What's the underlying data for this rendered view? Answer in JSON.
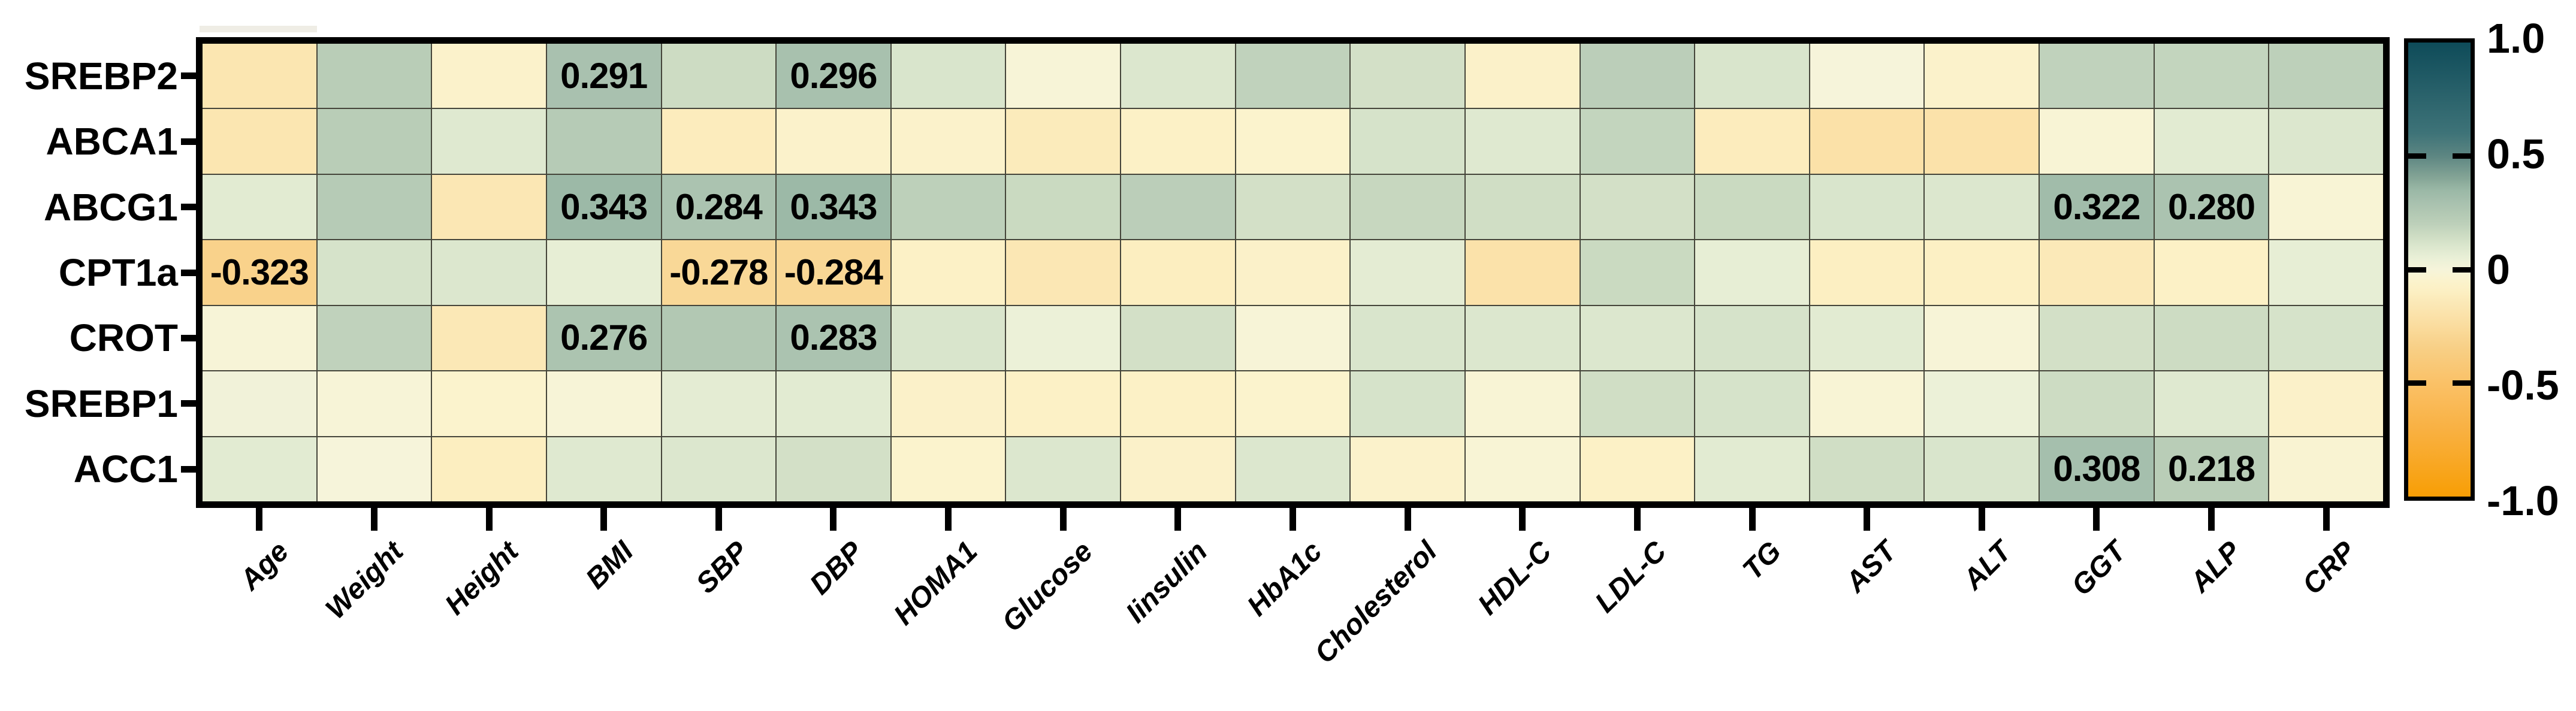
{
  "figure": {
    "description": "Correlation heatmap between gene expression and clinical parameters"
  },
  "chart_data": {
    "type": "heatmap",
    "rows": [
      "SREBP2",
      "ABCA1",
      "ABCG1",
      "CPT1a",
      "CROT",
      "SREBP1",
      "ACC1"
    ],
    "columns": [
      "Age",
      "Weight",
      "Height",
      "BMI",
      "SBP",
      "DBP",
      "HOMA1",
      "Glucose",
      "Iinsulin",
      "HbA1c",
      "Cholesterol",
      "HDL-C",
      "LDL-C",
      "TG",
      "AST",
      "ALT",
      "GGT",
      "ALP",
      "CRP"
    ],
    "values": [
      [
        -0.17,
        0.22,
        -0.06,
        0.291,
        0.15,
        0.296,
        0.11,
        -0.01,
        0.1,
        0.19,
        0.13,
        -0.07,
        0.21,
        0.11,
        0.0,
        -0.06,
        0.19,
        0.18,
        0.2
      ],
      [
        -0.17,
        0.22,
        0.09,
        0.23,
        -0.12,
        -0.06,
        -0.06,
        -0.13,
        -0.08,
        -0.05,
        0.12,
        0.09,
        0.18,
        -0.12,
        -0.21,
        -0.2,
        -0.02,
        0.08,
        0.1
      ],
      [
        0.08,
        0.23,
        -0.16,
        0.343,
        0.284,
        0.343,
        0.2,
        0.16,
        0.21,
        0.13,
        0.17,
        0.14,
        0.13,
        0.16,
        0.11,
        0.1,
        0.322,
        0.28,
        -0.02
      ],
      [
        -0.323,
        0.12,
        0.1,
        0.06,
        -0.278,
        -0.284,
        -0.08,
        -0.16,
        -0.11,
        -0.07,
        0.07,
        -0.2,
        0.16,
        0.06,
        -0.1,
        -0.09,
        -0.14,
        -0.08,
        0.06
      ],
      [
        -0.01,
        0.19,
        -0.15,
        0.276,
        0.25,
        0.283,
        0.11,
        0.04,
        0.13,
        -0.01,
        0.11,
        0.1,
        0.1,
        0.12,
        0.08,
        -0.01,
        0.13,
        0.15,
        0.12
      ],
      [
        0.02,
        -0.01,
        -0.05,
        -0.01,
        0.07,
        0.08,
        -0.07,
        -0.08,
        -0.08,
        -0.05,
        0.12,
        -0.02,
        0.14,
        0.12,
        -0.02,
        0.04,
        0.15,
        0.09,
        -0.07
      ],
      [
        0.08,
        0.0,
        -0.11,
        0.09,
        0.1,
        0.13,
        -0.05,
        0.1,
        -0.07,
        0.1,
        -0.06,
        -0.02,
        -0.08,
        0.08,
        0.14,
        0.11,
        0.308,
        0.218,
        -0.03
      ]
    ],
    "labeled_cells": [
      {
        "row": 0,
        "col": 3,
        "text": "0.291"
      },
      {
        "row": 0,
        "col": 5,
        "text": "0.296"
      },
      {
        "row": 2,
        "col": 3,
        "text": "0.343"
      },
      {
        "row": 2,
        "col": 4,
        "text": "0.284"
      },
      {
        "row": 2,
        "col": 5,
        "text": "0.343"
      },
      {
        "row": 2,
        "col": 16,
        "text": "0.322"
      },
      {
        "row": 2,
        "col": 17,
        "text": "0.280"
      },
      {
        "row": 3,
        "col": 0,
        "text": "-0.323"
      },
      {
        "row": 3,
        "col": 4,
        "text": "-0.278"
      },
      {
        "row": 3,
        "col": 5,
        "text": "-0.284"
      },
      {
        "row": 4,
        "col": 3,
        "text": "0.276"
      },
      {
        "row": 4,
        "col": 5,
        "text": "0.283"
      },
      {
        "row": 6,
        "col": 16,
        "text": "0.308"
      },
      {
        "row": 6,
        "col": 17,
        "text": "0.218"
      }
    ],
    "colorbar": {
      "position": "right",
      "min": -1.0,
      "max": 1.0,
      "tick_values": [
        1.0,
        0.5,
        0,
        -0.5,
        -1.0
      ],
      "tick_labels": [
        "1.0",
        "0.5",
        "0",
        "-0.5",
        "-1.0"
      ]
    },
    "colormap_stops": [
      {
        "v": 1.0,
        "color": "#0E4B59"
      },
      {
        "v": 0.6,
        "color": "#3E7378"
      },
      {
        "v": 0.5,
        "color": "#5D8682"
      },
      {
        "v": 0.4,
        "color": "#86A697"
      },
      {
        "v": 0.35,
        "color": "#9AB8A6"
      },
      {
        "v": 0.3,
        "color": "#A7C0AE"
      },
      {
        "v": 0.25,
        "color": "#B2C8B3"
      },
      {
        "v": 0.2,
        "color": "#BDD0BA"
      },
      {
        "v": 0.15,
        "color": "#CDDCC3"
      },
      {
        "v": 0.1,
        "color": "#DCE7CE"
      },
      {
        "v": 0.05,
        "color": "#EAF0D7"
      },
      {
        "v": 0.0,
        "color": "#F6F4DA"
      },
      {
        "v": -0.05,
        "color": "#FBF3CD"
      },
      {
        "v": -0.1,
        "color": "#FCEFC2"
      },
      {
        "v": -0.15,
        "color": "#FBE8B6"
      },
      {
        "v": -0.2,
        "color": "#FBE2AA"
      },
      {
        "v": -0.25,
        "color": "#FADC9E"
      },
      {
        "v": -0.3,
        "color": "#F9D591"
      },
      {
        "v": -0.35,
        "color": "#F8CF85"
      },
      {
        "v": -0.5,
        "color": "#FAC167"
      },
      {
        "v": -0.7,
        "color": "#F9B143"
      },
      {
        "v": -1.0,
        "color": "#F89E05"
      }
    ]
  }
}
